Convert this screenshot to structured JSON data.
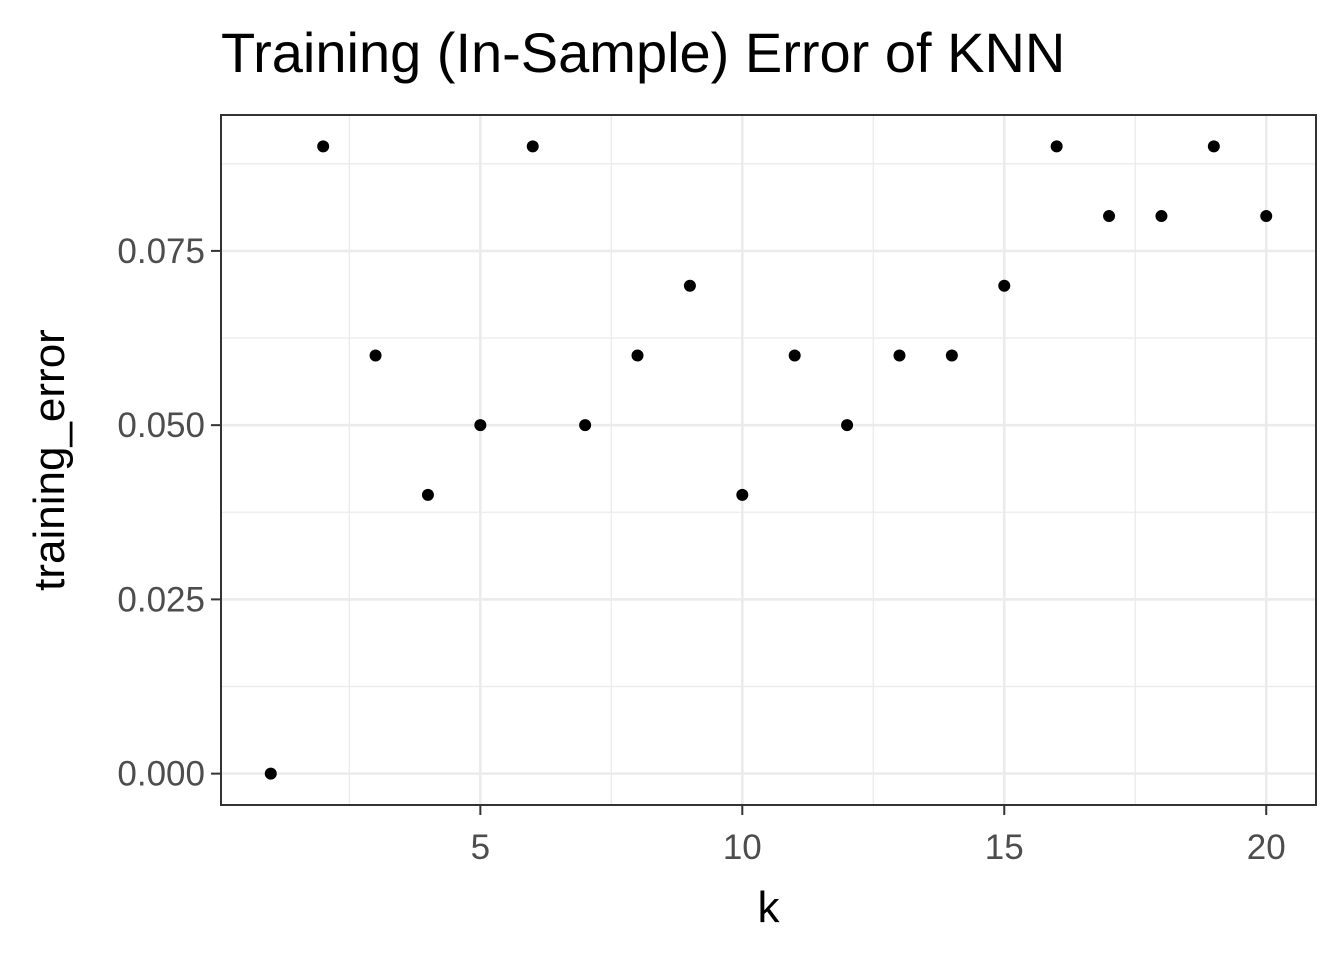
{
  "chart_data": {
    "type": "scatter",
    "title": "Training (In-Sample) Error of KNN",
    "xlabel": "k",
    "ylabel": "training_error",
    "xlim": [
      0.05,
      20.95
    ],
    "ylim": [
      -0.0045,
      0.0945
    ],
    "x_ticks": [
      5,
      10,
      15,
      20
    ],
    "x_tick_labels": [
      "5",
      "10",
      "15",
      "20"
    ],
    "x_minor_ticks": [
      2.5,
      7.5,
      12.5,
      17.5
    ],
    "y_ticks": [
      0,
      0.025,
      0.05,
      0.075
    ],
    "y_tick_labels": [
      "0.000",
      "0.025",
      "0.050",
      "0.075"
    ],
    "y_minor_ticks": [
      0.0125,
      0.0375,
      0.0625,
      0.0875
    ],
    "grid": true,
    "legend": "none",
    "colors": {
      "point": "#000000",
      "grid_major": "#ebebeb",
      "grid_minor": "#ebebeb",
      "panel_border": "#333333",
      "tick_label": "#4d4d4d"
    },
    "series": [
      {
        "x": [
          1,
          2,
          3,
          4,
          5,
          6,
          7,
          8,
          9,
          10,
          11,
          12,
          13,
          14,
          15,
          16,
          17,
          18,
          19,
          20
        ],
        "y": [
          0.0,
          0.09,
          0.06,
          0.04,
          0.05,
          0.09,
          0.05,
          0.06,
          0.07,
          0.04,
          0.06,
          0.05,
          0.06,
          0.06,
          0.07,
          0.09,
          0.08,
          0.08,
          0.09,
          0.08
        ]
      }
    ]
  }
}
